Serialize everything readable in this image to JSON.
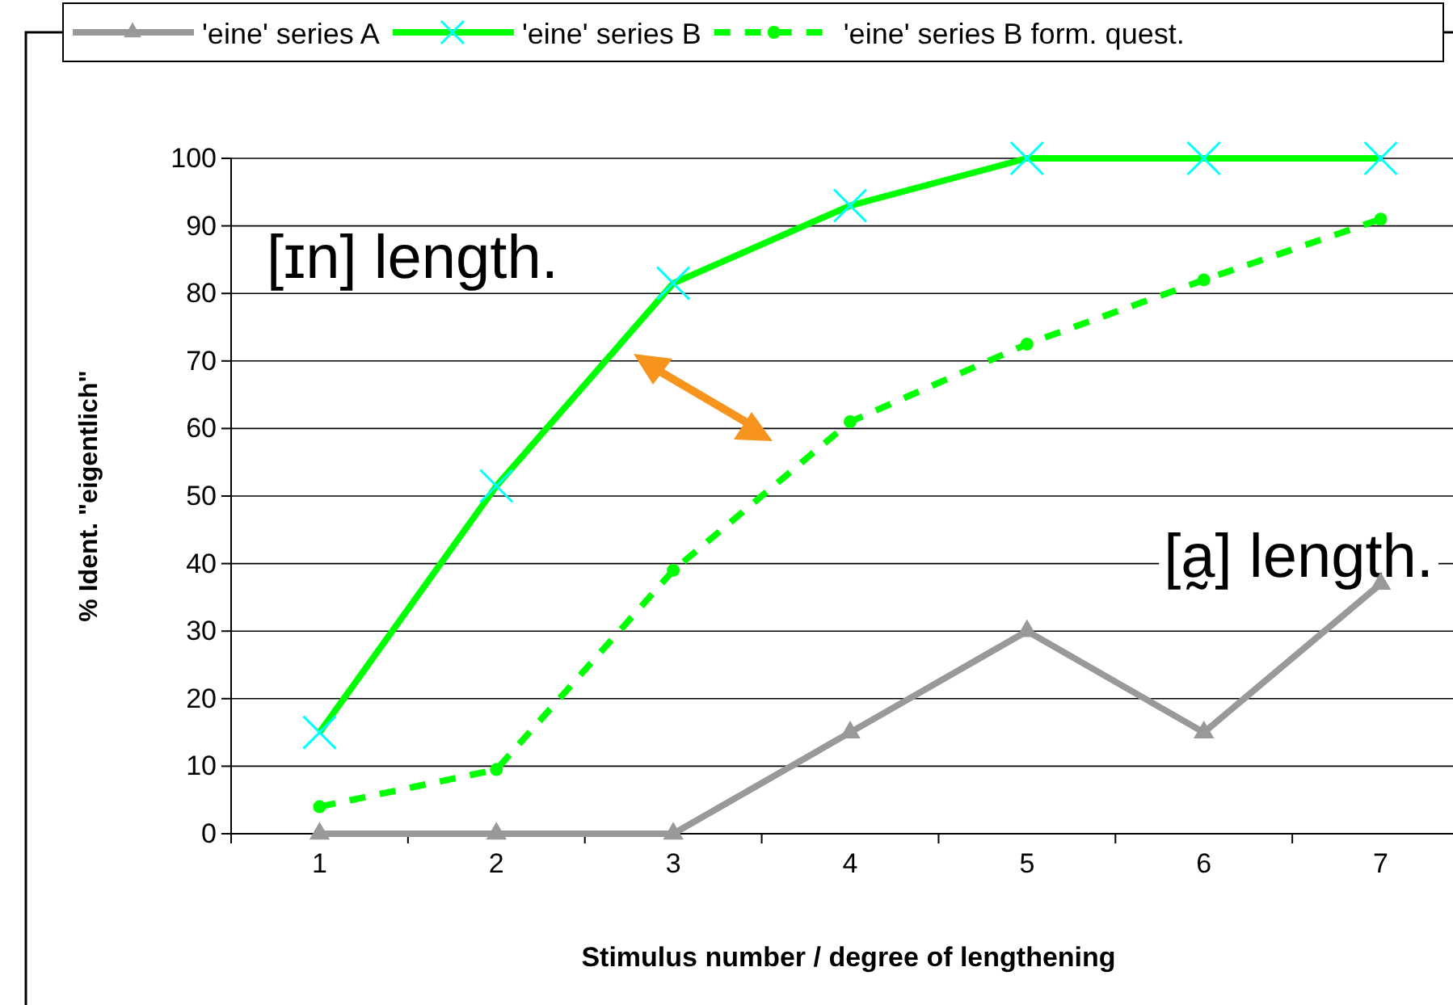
{
  "chart_data": {
    "type": "line",
    "xlabel": "Stimulus number / degree of lengthening",
    "ylabel": "% Ident.  \"eigentlich\"",
    "categories": [
      "1",
      "2",
      "3",
      "4",
      "5",
      "6",
      "7"
    ],
    "series": [
      {
        "name": "'eine' series A",
        "color": "#999999",
        "marker": "triangle",
        "line_style": "solid",
        "values": [
          0,
          0,
          0,
          15,
          30,
          15,
          37
        ]
      },
      {
        "name": "'eine' series B",
        "color": "#00ff00",
        "marker": "cross",
        "line_style": "solid",
        "values": [
          15,
          51.5,
          81.5,
          93,
          100,
          100,
          100
        ]
      },
      {
        "name": "'eine' series B form. quest.",
        "color": "#00ff00",
        "marker": "circle",
        "line_style": "dashed",
        "values": [
          4,
          9.5,
          39,
          61,
          72.5,
          82,
          91
        ]
      }
    ],
    "ylim": [
      0,
      100
    ],
    "yticks": [
      0,
      10,
      20,
      30,
      40,
      50,
      60,
      70,
      80,
      90,
      100
    ],
    "grid": "y",
    "legend": "top",
    "annotations": [
      "[ɪn] length.",
      "[a̰] length."
    ]
  }
}
